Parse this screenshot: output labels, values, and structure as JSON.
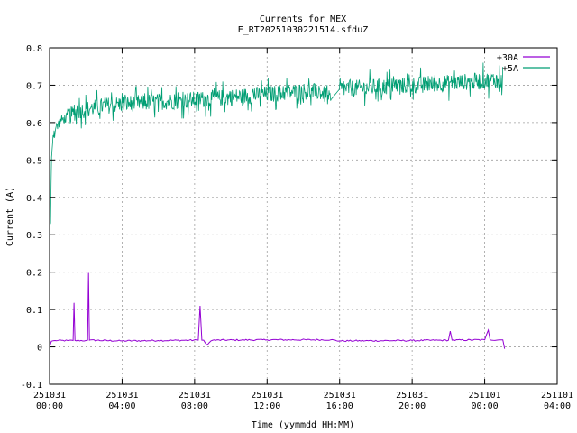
{
  "chart_data": {
    "type": "line",
    "title": "Currents for MEX",
    "subtitle": "E_RT20251030221514.sfduZ",
    "xlabel": "Time (yymmdd HH:MM)",
    "ylabel": "Current (A)",
    "xlim_hours": [
      0,
      28
    ],
    "ylim": [
      -0.1,
      0.8
    ],
    "yticks": [
      -0.1,
      0,
      0.1,
      0.2,
      0.3,
      0.4,
      0.5,
      0.6,
      0.7,
      0.8
    ],
    "ytick_labels": [
      "-0.1",
      "0",
      "0.1",
      "0.2",
      "0.3",
      "0.4",
      "0.5",
      "0.6",
      "0.7",
      "0.8"
    ],
    "xticks": [
      {
        "hour": 0,
        "date": "251031",
        "time": "00:00"
      },
      {
        "hour": 4,
        "date": "251031",
        "time": "04:00"
      },
      {
        "hour": 8,
        "date": "251031",
        "time": "08:00"
      },
      {
        "hour": 12,
        "date": "251031",
        "time": "12:00"
      },
      {
        "hour": 16,
        "date": "251031",
        "time": "16:00"
      },
      {
        "hour": 20,
        "date": "251031",
        "time": "20:00"
      },
      {
        "hour": 24,
        "date": "251101",
        "time": "00:00"
      },
      {
        "hour": 28,
        "date": "251101",
        "time": "04:00"
      }
    ],
    "grid": true,
    "legend_position": "top-right",
    "series": [
      {
        "name": "+30A",
        "color": "#9400d3",
        "x_hours": [
          0.0,
          0.1,
          0.3,
          1.0,
          1.3,
          1.35,
          1.4,
          2.0,
          2.1,
          2.15,
          2.2,
          4.0,
          6.0,
          8.2,
          8.3,
          8.4,
          8.5,
          8.7,
          8.9,
          9.0,
          12.0,
          15.5,
          16.0,
          20.0,
          22.0,
          22.1,
          22.2,
          24.0,
          24.2,
          24.3,
          25.0,
          25.1
        ],
        "values": [
          0.0,
          0.015,
          0.017,
          0.017,
          0.017,
          0.118,
          0.017,
          0.017,
          0.018,
          0.198,
          0.018,
          0.016,
          0.017,
          0.018,
          0.11,
          0.018,
          0.018,
          0.005,
          0.016,
          0.018,
          0.019,
          0.019,
          0.016,
          0.017,
          0.018,
          0.042,
          0.018,
          0.019,
          0.045,
          0.019,
          0.019,
          -0.005
        ]
      },
      {
        "name": "+5A",
        "color": "#009e73",
        "x_hours": [
          0.0,
          0.05,
          0.1,
          0.2,
          0.4,
          0.6,
          1.0,
          1.5,
          2.0,
          3.0,
          4.0,
          5.0,
          6.0,
          7.0,
          8.0,
          9.0,
          10.0,
          11.0,
          12.0,
          13.0,
          14.0,
          15.0,
          15.5,
          16.0,
          17.0,
          18.0,
          19.0,
          20.0,
          21.0,
          22.0,
          23.0,
          24.0,
          24.5,
          25.0
        ],
        "values": [
          0.35,
          0.31,
          0.5,
          0.57,
          0.59,
          0.605,
          0.615,
          0.63,
          0.635,
          0.645,
          0.65,
          0.653,
          0.656,
          0.658,
          0.661,
          0.664,
          0.668,
          0.672,
          0.676,
          0.68,
          0.684,
          0.681,
          0.66,
          0.69,
          0.692,
          0.695,
          0.698,
          0.7,
          0.703,
          0.706,
          0.709,
          0.712,
          0.715,
          0.712
        ],
        "noise_amplitude": 0.045
      }
    ]
  }
}
